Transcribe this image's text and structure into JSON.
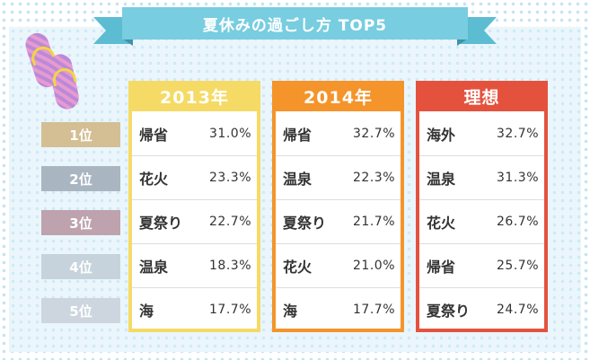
{
  "title": "夏休みの過ごし方 TOP5",
  "ranks": [
    {
      "label": "1位",
      "color": "#d4bf95"
    },
    {
      "label": "2位",
      "color": "#aab5c2"
    },
    {
      "label": "3位",
      "color": "#bea2ad"
    },
    {
      "label": "4位",
      "color": "#c7d3dc"
    },
    {
      "label": "5位",
      "color": "#cdd6df"
    }
  ],
  "columns": [
    {
      "header": "2013年",
      "color": "#f5da65",
      "rows": [
        {
          "item": "帰省",
          "pct": "31.0%"
        },
        {
          "item": "花火",
          "pct": "23.3%"
        },
        {
          "item": "夏祭り",
          "pct": "22.7%"
        },
        {
          "item": "温泉",
          "pct": "18.3%"
        },
        {
          "item": "海",
          "pct": "17.7%"
        }
      ]
    },
    {
      "header": "2014年",
      "color": "#f4942a",
      "rows": [
        {
          "item": "帰省",
          "pct": "32.7%"
        },
        {
          "item": "温泉",
          "pct": "22.3%"
        },
        {
          "item": "夏祭り",
          "pct": "21.7%"
        },
        {
          "item": "花火",
          "pct": "21.0%"
        },
        {
          "item": "海",
          "pct": "17.7%"
        }
      ]
    },
    {
      "header": "理想",
      "color": "#e4523e",
      "rows": [
        {
          "item": "海外",
          "pct": "32.7%"
        },
        {
          "item": "温泉",
          "pct": "31.3%"
        },
        {
          "item": "花火",
          "pct": "26.7%"
        },
        {
          "item": "帰省",
          "pct": "25.7%"
        },
        {
          "item": "夏祭り",
          "pct": "24.7%"
        }
      ]
    }
  ]
}
